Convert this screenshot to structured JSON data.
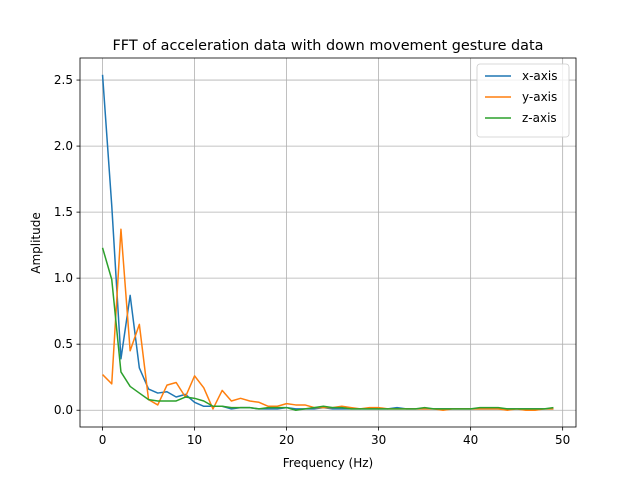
{
  "chart_data": {
    "type": "line",
    "title": "FFT of acceleration data with down movement gesture data",
    "xlabel": "Frequency (Hz)",
    "ylabel": "Amplitude",
    "xlim": [
      -2.45,
      51.45
    ],
    "ylim": [
      -0.127,
      2.667
    ],
    "xticks": [
      0,
      10,
      20,
      30,
      40,
      50
    ],
    "xtick_labels": [
      "0",
      "10",
      "20",
      "30",
      "40",
      "50"
    ],
    "yticks": [
      0.0,
      0.5,
      1.0,
      1.5,
      2.0,
      2.5
    ],
    "ytick_labels": [
      "0.0",
      "0.5",
      "1.0",
      "1.5",
      "2.0",
      "2.5"
    ],
    "grid": true,
    "legend_position": "top-right",
    "x": [
      0,
      1,
      2,
      3,
      4,
      5,
      6,
      7,
      8,
      9,
      10,
      11,
      12,
      13,
      14,
      15,
      16,
      17,
      18,
      19,
      20,
      21,
      22,
      23,
      24,
      25,
      26,
      27,
      28,
      29,
      30,
      31,
      32,
      33,
      34,
      35,
      36,
      37,
      38,
      39,
      40,
      41,
      42,
      43,
      44,
      45,
      46,
      47,
      48,
      49
    ],
    "series": [
      {
        "name": "x-axis",
        "color": "#1f77b4",
        "values": [
          2.54,
          1.55,
          0.39,
          0.87,
          0.32,
          0.16,
          0.13,
          0.14,
          0.1,
          0.12,
          0.06,
          0.03,
          0.03,
          0.03,
          0.01,
          0.02,
          0.02,
          0.01,
          0.01,
          0.01,
          0.02,
          0.01,
          0.01,
          0.01,
          0.02,
          0.01,
          0.01,
          0.01,
          0.01,
          0.01,
          0.01,
          0.01,
          0.02,
          0.01,
          0.01,
          0.01,
          0.01,
          0.01,
          0.01,
          0.01,
          0.01,
          0.01,
          0.01,
          0.01,
          0.01,
          0.01,
          0.01,
          0.01,
          0.01,
          0.01
        ]
      },
      {
        "name": "y-axis",
        "color": "#ff7f0e",
        "values": [
          0.27,
          0.2,
          1.37,
          0.45,
          0.65,
          0.08,
          0.04,
          0.19,
          0.21,
          0.1,
          0.26,
          0.17,
          0.01,
          0.15,
          0.07,
          0.09,
          0.07,
          0.06,
          0.03,
          0.03,
          0.05,
          0.04,
          0.04,
          0.02,
          0.02,
          0.02,
          0.03,
          0.02,
          0.01,
          0.02,
          0.02,
          0.01,
          0.01,
          0.01,
          0.01,
          0.01,
          0.01,
          0.0,
          0.01,
          0.01,
          0.01,
          0.01,
          0.01,
          0.01,
          0.0,
          0.01,
          0.0,
          0.0,
          0.01,
          0.01
        ]
      },
      {
        "name": "z-axis",
        "color": "#2ca02c",
        "values": [
          1.23,
          0.99,
          0.29,
          0.18,
          0.13,
          0.08,
          0.07,
          0.07,
          0.07,
          0.1,
          0.09,
          0.07,
          0.03,
          0.03,
          0.02,
          0.02,
          0.02,
          0.01,
          0.02,
          0.02,
          0.02,
          0.0,
          0.01,
          0.02,
          0.03,
          0.02,
          0.02,
          0.01,
          0.01,
          0.01,
          0.01,
          0.01,
          0.01,
          0.01,
          0.01,
          0.02,
          0.01,
          0.01,
          0.01,
          0.01,
          0.01,
          0.02,
          0.02,
          0.02,
          0.01,
          0.01,
          0.01,
          0.01,
          0.01,
          0.02
        ]
      }
    ]
  }
}
